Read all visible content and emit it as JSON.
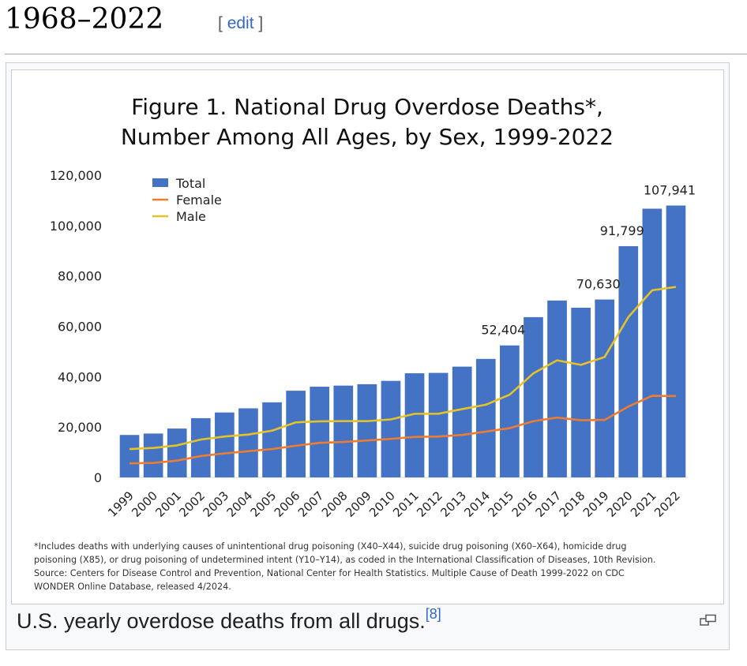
{
  "heading": {
    "title": "1968–2022",
    "edit_open": "[",
    "edit_label": "edit",
    "edit_close": "]"
  },
  "caption": {
    "text": "U.S. yearly overdose deaths from all drugs.",
    "ref": "[8]"
  },
  "chart_data": {
    "type": "bar",
    "title": [
      "Figure 1. National Drug Overdose Deaths*,",
      "Number Among All Ages, by Sex, 1999-2022"
    ],
    "categories": [
      "1999",
      "2000",
      "2001",
      "2002",
      "2003",
      "2004",
      "2005",
      "2006",
      "2007",
      "2008",
      "2009",
      "2010",
      "2011",
      "2012",
      "2013",
      "2014",
      "2015",
      "2016",
      "2017",
      "2018",
      "2019",
      "2020",
      "2021",
      "2022"
    ],
    "series": [
      {
        "name": "Total",
        "kind": "bar",
        "color": "#4472c4",
        "values": [
          16849,
          17415,
          19394,
          23518,
          25785,
          27424,
          29813,
          34425,
          36010,
          36450,
          37004,
          38329,
          41340,
          41502,
          43982,
          47055,
          52404,
          63632,
          70237,
          67367,
          70630,
          91799,
          106699,
          107941
        ]
      },
      {
        "name": "Female",
        "kind": "line",
        "color": "#ed7d31",
        "values": [
          5591,
          5734,
          6678,
          8485,
          9540,
          10408,
          11254,
          12574,
          13735,
          14091,
          14676,
          15302,
          16076,
          16221,
          16868,
          18198,
          19556,
          22327,
          23743,
          22688,
          22828,
          28128,
          32398,
          32296
        ]
      },
      {
        "name": "Male",
        "kind": "line",
        "color": "#e6c229",
        "values": [
          11258,
          11681,
          12716,
          15033,
          16245,
          17016,
          18559,
          21851,
          22275,
          22359,
          22328,
          23027,
          25264,
          25281,
          27114,
          28857,
          32848,
          41305,
          46494,
          44679,
          47802,
          63671,
          74301,
          75645
        ]
      }
    ],
    "data_labels": [
      {
        "category": "2015",
        "text": "52,404"
      },
      {
        "category": "2019",
        "text": "70,630"
      },
      {
        "category": "2020",
        "text": "91,799"
      },
      {
        "category": "2022",
        "text": "107,941"
      }
    ],
    "y_ticks": [
      0,
      20000,
      40000,
      60000,
      80000,
      100000,
      120000
    ],
    "y_tick_labels": [
      "0",
      "20,000",
      "40,000",
      "60,000",
      "80,000",
      "100,000",
      "120,000"
    ],
    "ylim": [
      0,
      120000
    ],
    "legend_position": "top-left",
    "grid": false,
    "footnote": [
      "*Includes deaths with underlying causes of unintentional drug poisoning (X40–X44), suicide drug poisoning (X60–X64), homicide drug",
      "poisoning (X85), or drug poisoning of undetermined intent (Y10–Y14), as coded in the International Classification of Diseases, 10th Revision.",
      "Source: Centers for Disease Control and Prevention, National Center for Health Statistics. Multiple Cause of Death 1999-2022 on CDC",
      "WONDER Online Database, released 4/2024."
    ]
  }
}
